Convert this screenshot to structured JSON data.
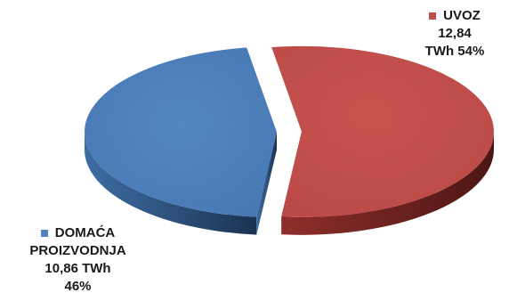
{
  "chart_data": {
    "type": "pie",
    "style": "3d-exploded",
    "slices": [
      {
        "name": "UVOZ",
        "value": 12.84,
        "unit": "TWh",
        "percent": 54,
        "color": "#C0504D",
        "label_lines": [
          "UVOZ",
          "12,84",
          "TWh 54%"
        ]
      },
      {
        "name": "DOMAĆA PROIZVODNJA",
        "value": 10.86,
        "unit": "TWh",
        "percent": 46,
        "color": "#4F81BD",
        "label_lines": [
          "DOMAĆA",
          "PROIZVODNJA",
          "10,86 TWh",
          "46%"
        ]
      }
    ]
  }
}
